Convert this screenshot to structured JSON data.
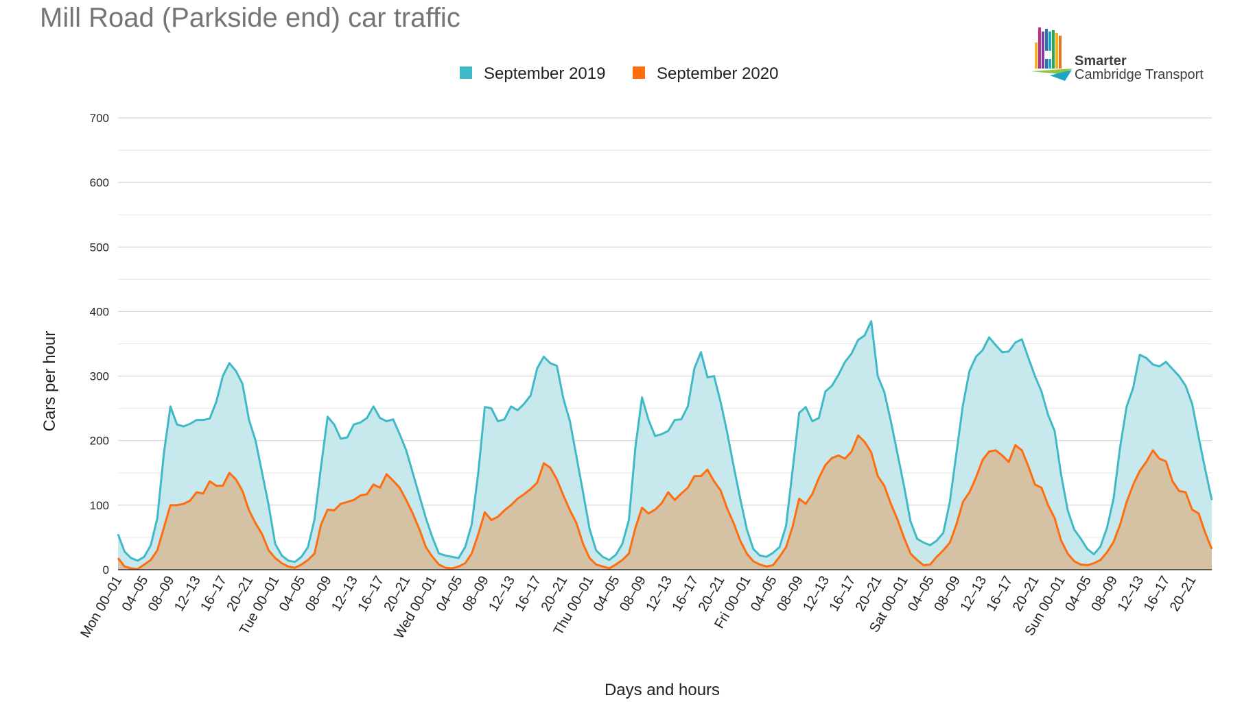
{
  "chart_data": {
    "type": "area",
    "title": "Mill Road (Parkside end) car traffic",
    "xlabel": "Days and hours",
    "ylabel": "Cars per hour",
    "ylim": [
      0,
      700
    ],
    "yticks": [
      0,
      100,
      200,
      300,
      400,
      500,
      600,
      700
    ],
    "minor_gridlines": true,
    "legend_position": "top-center",
    "x_tick_labels": [
      "Mon 00–01",
      "04–05",
      "08–09",
      "12–13",
      "16–17",
      "20–21",
      "Tue 00–01",
      "04–05",
      "08–09",
      "12–13",
      "16–17",
      "20–21",
      "Wed 00–01",
      "04–05",
      "08–09",
      "12–13",
      "16–17",
      "20–21",
      "Thu 00–01",
      "04–05",
      "08–09",
      "12–13",
      "16–17",
      "20–21",
      "Fri 00–01",
      "04–05",
      "08–09",
      "12–13",
      "16–17",
      "20–21",
      "Sat 00–01",
      "04–05",
      "08–09",
      "12–13",
      "16–17",
      "20–21",
      "Sun 00–01",
      "04–05",
      "08–09",
      "12–13",
      "16–17",
      "20–21"
    ],
    "x_tick_every_hours": 4,
    "series": [
      {
        "name": "September 2019",
        "color": "#3fb9c6",
        "fill": "#c7e8ec",
        "values": [
          55,
          28,
          18,
          14,
          20,
          38,
          80,
          180,
          253,
          225,
          222,
          226,
          232,
          232,
          234,
          260,
          300,
          320,
          308,
          288,
          232,
          200,
          150,
          100,
          40,
          22,
          14,
          12,
          20,
          35,
          78,
          160,
          237,
          225,
          203,
          205,
          225,
          228,
          235,
          253,
          235,
          230,
          233,
          210,
          185,
          150,
          115,
          80,
          50,
          25,
          22,
          20,
          18,
          35,
          70,
          150,
          252,
          250,
          230,
          233,
          253,
          247,
          257,
          270,
          312,
          330,
          320,
          316,
          265,
          230,
          175,
          120,
          63,
          30,
          20,
          15,
          23,
          40,
          77,
          190,
          267,
          232,
          207,
          210,
          215,
          232,
          233,
          253,
          312,
          337,
          298,
          300,
          260,
          213,
          160,
          110,
          63,
          32,
          22,
          20,
          26,
          35,
          68,
          155,
          243,
          252,
          230,
          235,
          276,
          285,
          302,
          322,
          335,
          356,
          363,
          385,
          300,
          275,
          230,
          180,
          130,
          75,
          48,
          42,
          38,
          45,
          57,
          105,
          180,
          255,
          308,
          330,
          340,
          360,
          348,
          337,
          338,
          352,
          357,
          328,
          300,
          276,
          240,
          215,
          147,
          92,
          62,
          48,
          32,
          24,
          36,
          65,
          110,
          190,
          253,
          282,
          333,
          328,
          318,
          315,
          322,
          311,
          300,
          285,
          257,
          205,
          155,
          108
        ]
      },
      {
        "name": "September 2020",
        "color": "#ff6d0d",
        "fill": "#d5c1a4",
        "values": [
          18,
          5,
          2,
          1,
          8,
          15,
          30,
          65,
          100,
          100,
          102,
          107,
          120,
          118,
          137,
          130,
          130,
          150,
          140,
          122,
          92,
          72,
          55,
          30,
          18,
          10,
          5,
          3,
          8,
          15,
          25,
          70,
          93,
          92,
          102,
          105,
          108,
          115,
          117,
          132,
          127,
          148,
          138,
          127,
          108,
          87,
          63,
          35,
          20,
          8,
          3,
          2,
          5,
          10,
          25,
          55,
          89,
          77,
          82,
          92,
          100,
          110,
          117,
          125,
          135,
          165,
          158,
          140,
          115,
          92,
          72,
          40,
          18,
          8,
          5,
          2,
          8,
          15,
          25,
          65,
          96,
          87,
          93,
          103,
          120,
          108,
          118,
          127,
          145,
          145,
          155,
          137,
          123,
          95,
          72,
          45,
          25,
          13,
          8,
          5,
          7,
          20,
          35,
          67,
          110,
          102,
          117,
          142,
          162,
          173,
          177,
          172,
          183,
          208,
          198,
          182,
          145,
          130,
          102,
          78,
          50,
          25,
          15,
          7,
          8,
          20,
          30,
          42,
          70,
          105,
          120,
          143,
          170,
          183,
          185,
          177,
          167,
          193,
          185,
          160,
          132,
          127,
          100,
          80,
          45,
          25,
          13,
          8,
          7,
          10,
          15,
          27,
          43,
          70,
          105,
          132,
          153,
          167,
          185,
          172,
          168,
          137,
          122,
          120,
          93,
          87,
          57,
          32
        ]
      }
    ]
  },
  "logo": {
    "line1": "Smarter",
    "line2": "Cambridge Transport"
  }
}
